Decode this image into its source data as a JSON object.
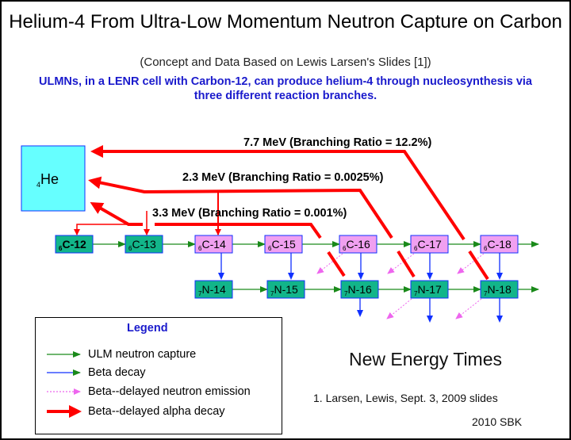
{
  "title": "Helium-4 From Ultra-Low Momentum Neutron Capture on Carbon",
  "subtitle": "(Concept and Data Based on Lewis Larsen's Slides [1])",
  "description": "ULMNs, in a LENR cell with Carbon-12, can produce helium-4 through nucleosynthesis via three different reaction branches.",
  "helium": {
    "sub": "4",
    "label": "He"
  },
  "branches": [
    "7.7 MeV (Branching Ratio = 12.2%)",
    "2.3 MeV (Branching Ratio = 0.0025%)",
    "3.3 MeV (Branching Ratio = 0.001%)"
  ],
  "carbon": [
    {
      "z": "6",
      "name": "C-12"
    },
    {
      "z": "6",
      "name": "C-13"
    },
    {
      "z": "6",
      "name": "C-14"
    },
    {
      "z": "6",
      "name": "C-15"
    },
    {
      "z": "6",
      "name": "C-16"
    },
    {
      "z": "6",
      "name": "C-17"
    },
    {
      "z": "6",
      "name": "C-18"
    }
  ],
  "nitrogen": [
    {
      "z": "7",
      "name": "N-14"
    },
    {
      "z": "7",
      "name": "N-15"
    },
    {
      "z": "7",
      "name": "N-16"
    },
    {
      "z": "7",
      "name": "N-17"
    },
    {
      "z": "7",
      "name": "N-18"
    }
  ],
  "legend": {
    "title": "Legend",
    "items": [
      "ULM neutron capture",
      "Beta decay",
      "Beta--delayed neutron emission",
      "Beta--delayed alpha decay"
    ]
  },
  "credit": "New Energy Times",
  "reference": "1. Larsen, Lewis, Sept. 3, 2009 slides",
  "signature": "2010 SBK",
  "colors": {
    "stable": "#12b58a",
    "unstable": "#f0a0f0",
    "helium": "#66ffff",
    "capture": "#1a8a1a",
    "beta": "#1030ff",
    "neutron": "#ee66ee",
    "alpha": "#ff0000"
  }
}
